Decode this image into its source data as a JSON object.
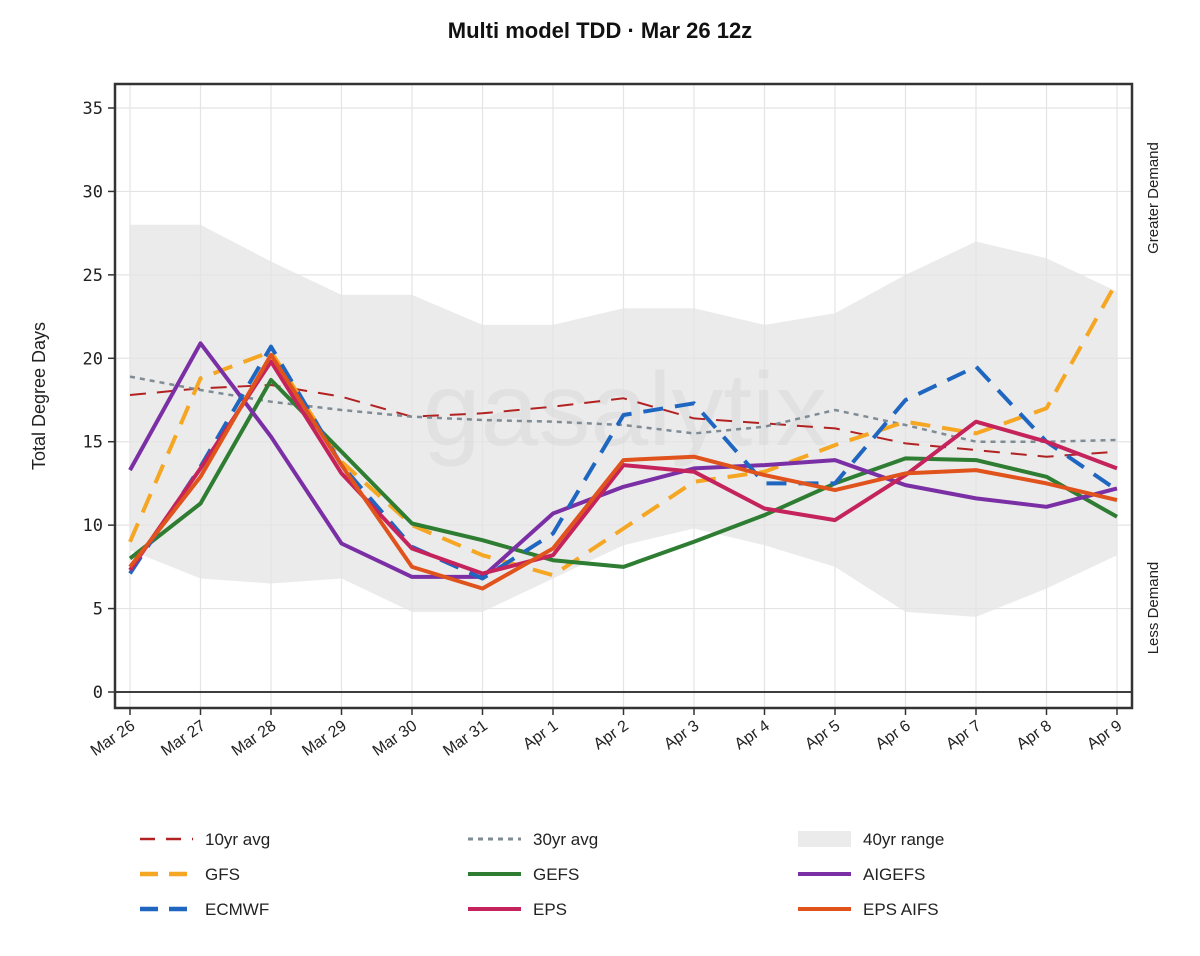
{
  "chart_data": {
    "type": "line",
    "title": "Multi model TDD · Mar 26 12z",
    "ylabel": "Total Degree Days",
    "xlabel": "",
    "ylim": [
      -1,
      36
    ],
    "yticks": [
      0,
      5,
      10,
      15,
      20,
      25,
      30,
      35
    ],
    "categories": [
      "Mar 26",
      "Mar 27",
      "Mar 28",
      "Mar 29",
      "Mar 30",
      "Mar 31",
      "Apr 1",
      "Apr 2",
      "Apr 3",
      "Apr 4",
      "Apr 5",
      "Apr 6",
      "Apr 7",
      "Apr 8",
      "Apr 9"
    ],
    "side_labels": {
      "top": "Greater Demand",
      "bottom": "Less Demand"
    },
    "watermark": "gasalytix",
    "range_40yr": {
      "name": "40yr range",
      "color": "#ebebeb",
      "upper": [
        28,
        28,
        25.8,
        23.8,
        23.8,
        22,
        22,
        23,
        23,
        22,
        22.7,
        25,
        27,
        26,
        24
      ],
      "lower": [
        8.5,
        6.8,
        6.5,
        6.8,
        4.8,
        4.8,
        6.8,
        8.8,
        9.8,
        8.8,
        7.5,
        4.8,
        4.5,
        6.2,
        8.2
      ]
    },
    "series": [
      {
        "name": "10yr avg",
        "color": "#b22222",
        "style": "dash",
        "values": [
          17.8,
          18.2,
          18.4,
          17.7,
          16.5,
          16.7,
          17.1,
          17.6,
          16.4,
          16.1,
          15.8,
          14.9,
          14.5,
          14.1,
          14.4
        ]
      },
      {
        "name": "30yr avg",
        "color": "#7f8c95",
        "style": "dot",
        "values": [
          18.9,
          18.1,
          17.4,
          16.9,
          16.5,
          16.3,
          16.2,
          16.0,
          15.5,
          15.9,
          16.9,
          16.0,
          15.0,
          15.0,
          15.1
        ]
      },
      {
        "name": "GFS",
        "color": "#f5a623",
        "style": "bigdash",
        "values": [
          9.0,
          18.8,
          20.4,
          13.8,
          10.0,
          8.2,
          7.0,
          9.8,
          12.6,
          13.2,
          14.8,
          16.2,
          15.5,
          17.0,
          24.6
        ]
      },
      {
        "name": "GEFS",
        "color": "#2e7d32",
        "style": "solid",
        "values": [
          8.0,
          11.3,
          18.7,
          14.4,
          10.1,
          9.1,
          7.9,
          7.5,
          9.0,
          10.6,
          12.5,
          14.0,
          13.9,
          12.9,
          10.5
        ]
      },
      {
        "name": "AIGEFS",
        "color": "#7b2fa5",
        "style": "solid",
        "values": [
          13.3,
          20.9,
          15.3,
          8.9,
          6.9,
          6.9,
          10.7,
          12.3,
          13.4,
          13.6,
          13.9,
          12.4,
          11.6,
          11.1,
          12.2
        ]
      },
      {
        "name": "ECMWF",
        "color": "#1f66c1",
        "style": "bigdash",
        "values": [
          7.1,
          13.5,
          20.7,
          13.6,
          8.7,
          6.8,
          9.5,
          16.6,
          17.3,
          12.5,
          12.5,
          17.5,
          19.5,
          15.0,
          12.1
        ]
      },
      {
        "name": "EPS",
        "color": "#c4245b",
        "style": "solid",
        "values": [
          7.3,
          13.4,
          19.8,
          13.1,
          8.6,
          7.1,
          8.2,
          13.6,
          13.2,
          11.0,
          10.3,
          13.0,
          16.2,
          15.0,
          13.4
        ]
      },
      {
        "name": "EPS AIFS",
        "color": "#e0531c",
        "style": "solid",
        "values": [
          7.5,
          12.9,
          20.2,
          13.6,
          7.5,
          6.2,
          8.6,
          13.9,
          14.1,
          13.0,
          12.1,
          13.1,
          13.3,
          12.5,
          11.5
        ]
      }
    ],
    "legend": {
      "placement": "bottom",
      "entries": [
        {
          "name": "10yr avg",
          "color": "#b22222",
          "style": "dash"
        },
        {
          "name": "30yr avg",
          "color": "#7f8c95",
          "style": "dot"
        },
        {
          "name": "40yr range",
          "color": "#ebebeb",
          "style": "band"
        },
        {
          "name": "GFS",
          "color": "#f5a623",
          "style": "bigdash"
        },
        {
          "name": "GEFS",
          "color": "#2e7d32",
          "style": "solid"
        },
        {
          "name": "AIGEFS",
          "color": "#7b2fa5",
          "style": "solid"
        },
        {
          "name": "ECMWF",
          "color": "#1f66c1",
          "style": "bigdash"
        },
        {
          "name": "EPS",
          "color": "#c4245b",
          "style": "solid"
        },
        {
          "name": "EPS AIFS",
          "color": "#e0531c",
          "style": "solid"
        }
      ]
    }
  }
}
